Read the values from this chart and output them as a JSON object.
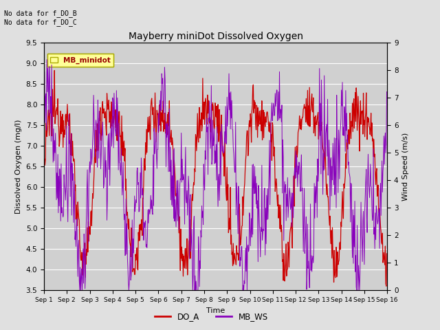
{
  "title": "Mayberry miniDot Dissolved Oxygen",
  "xlabel": "Time",
  "ylabel_left": "Dissolved Oxygen (mg/l)",
  "ylabel_right": "Wind Speed (m/s)",
  "ylim_left": [
    3.5,
    9.5
  ],
  "ylim_right": [
    0.0,
    9.0
  ],
  "yticks_left": [
    3.5,
    4.0,
    4.5,
    5.0,
    5.5,
    6.0,
    6.5,
    7.0,
    7.5,
    8.0,
    8.5,
    9.0,
    9.5
  ],
  "yticks_right": [
    0.0,
    1.0,
    2.0,
    3.0,
    4.0,
    5.0,
    6.0,
    7.0,
    8.0,
    9.0
  ],
  "background_color": "#e0e0e0",
  "plot_bg_color": "#d0d0d0",
  "do_color": "#cc0000",
  "ws_color": "#8800bb",
  "legend_items": [
    "DO_A",
    "MB_WS"
  ],
  "annotation_top_left": "No data for f_DO_B\nNo data for f_DO_C",
  "legend_box_label": "MB_minidot",
  "legend_box_color": "#ffff99",
  "legend_box_border": "#aaaa00",
  "n_points": 720
}
